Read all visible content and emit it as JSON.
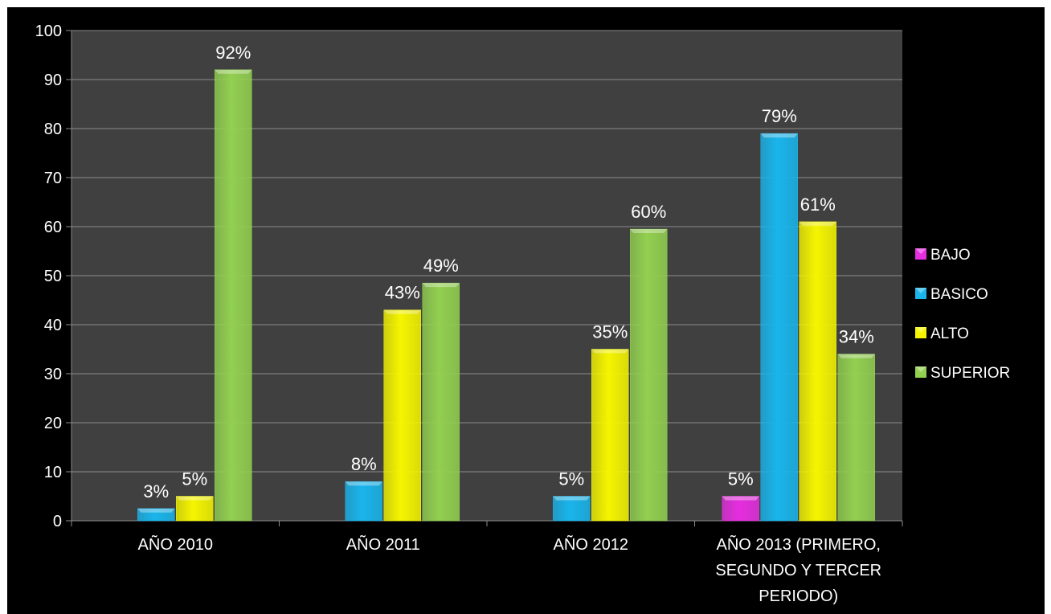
{
  "chart_data": {
    "type": "bar",
    "categories": [
      [
        "AÑO 2010"
      ],
      [
        "AÑO 2011"
      ],
      [
        "AÑO 2012"
      ],
      [
        "AÑO 2013 (PRIMERO,",
        "SEGUNDO Y TERCER",
        "PERIODO)"
      ]
    ],
    "series": [
      {
        "name": "BAJO",
        "color": "#e62ee0",
        "values": [
          null,
          null,
          null,
          5
        ],
        "labels": [
          "",
          "",
          "",
          "5%"
        ]
      },
      {
        "name": "BASICO",
        "color": "#19b5ec",
        "values": [
          2.5,
          8,
          5,
          79
        ],
        "labels": [
          "3%",
          "8%",
          "5%",
          "79%"
        ]
      },
      {
        "name": "ALTO",
        "color": "#f5f500",
        "values": [
          5,
          43,
          35,
          61
        ],
        "labels": [
          "5%",
          "43%",
          "35%",
          "61%"
        ]
      },
      {
        "name": "SUPERIOR",
        "color": "#92d050",
        "values": [
          92,
          48.5,
          59.5,
          34
        ],
        "labels": [
          "92%",
          "49%",
          "60%",
          "34%"
        ]
      }
    ],
    "ylim": [
      0,
      100
    ],
    "yticks": [
      0,
      10,
      20,
      30,
      40,
      50,
      60,
      70,
      80,
      90,
      100
    ],
    "grid": true,
    "legend_position": "right",
    "plot_background": "#404040",
    "title": "",
    "xlabel": "",
    "ylabel": ""
  }
}
